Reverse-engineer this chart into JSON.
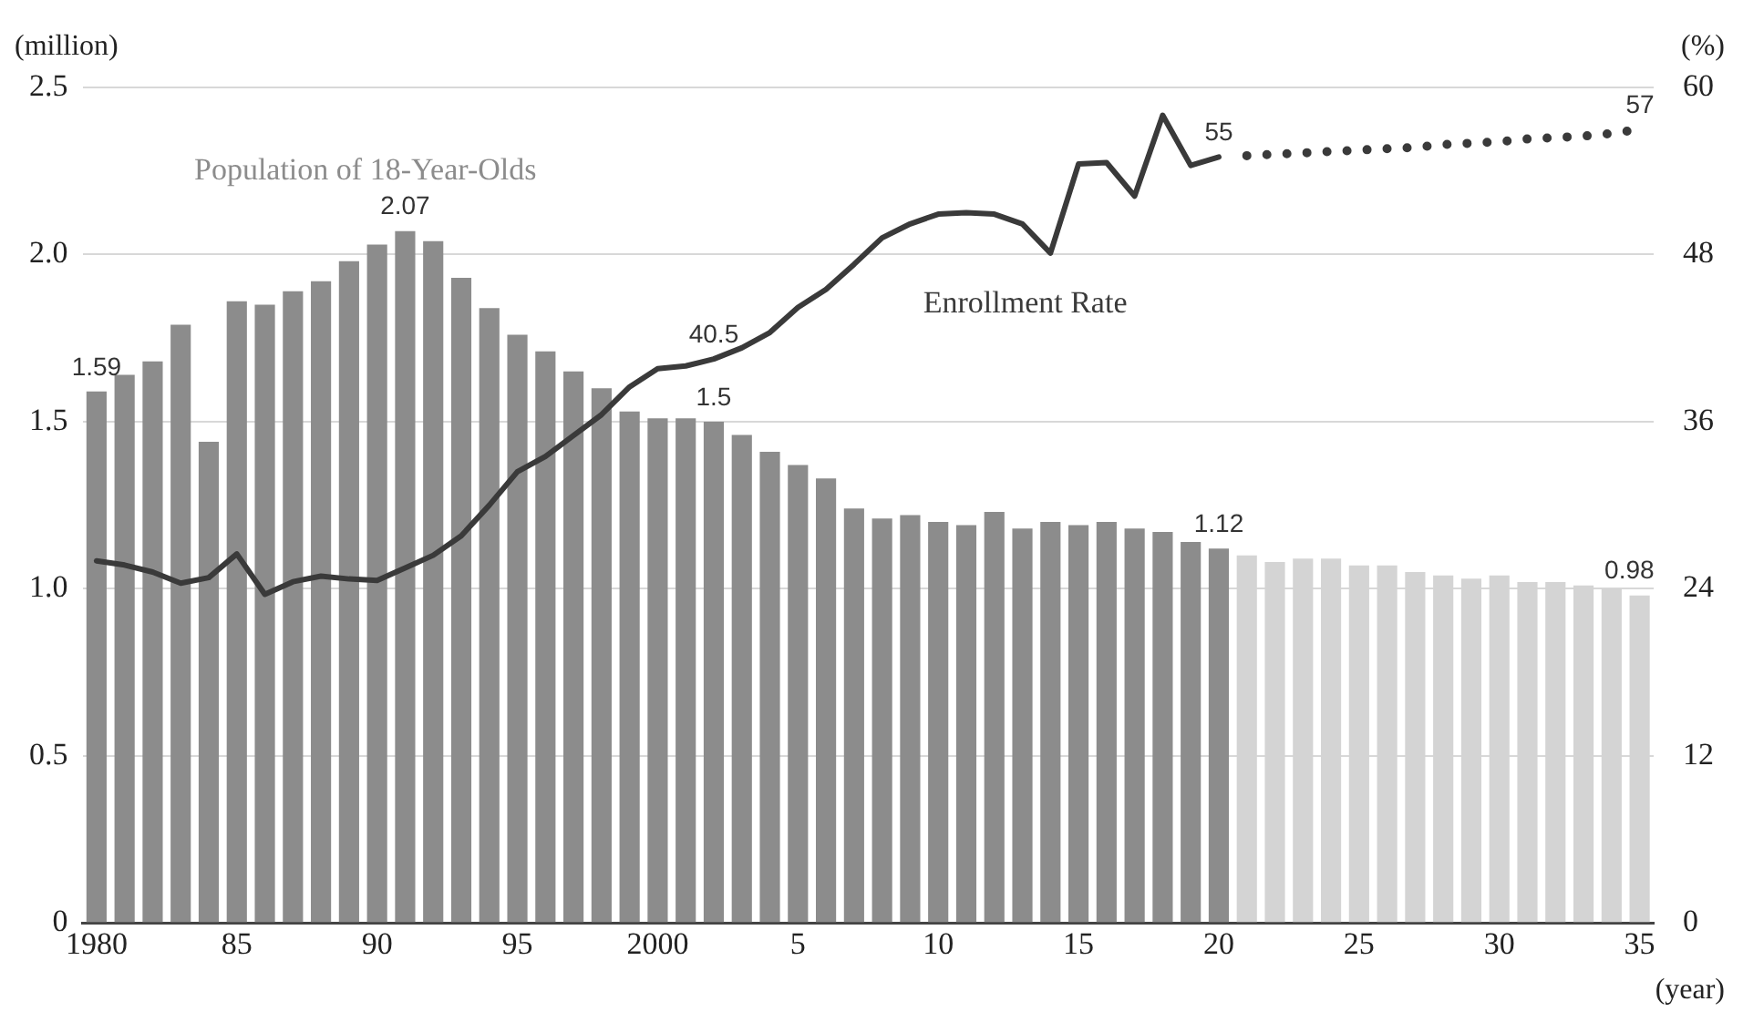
{
  "chart_data": {
    "type": "bar",
    "xlabel": "(year)",
    "ylabel": "(million)",
    "y2label": "(%)",
    "categories": [
      "1980",
      null,
      null,
      null,
      null,
      "85",
      null,
      null,
      null,
      null,
      "90",
      null,
      null,
      null,
      null,
      "95",
      null,
      null,
      null,
      null,
      "2000",
      null,
      null,
      null,
      null,
      "5",
      null,
      null,
      null,
      null,
      "10",
      null,
      null,
      null,
      null,
      "15",
      null,
      null,
      null,
      null,
      "20",
      null,
      null,
      null,
      null,
      "25",
      null,
      null,
      null,
      null,
      "30",
      null,
      null,
      null,
      null,
      "35"
    ],
    "series": [
      {
        "name": "Population of 18-Year-Olds",
        "color": "#8c8c8c",
        "values": [
          1.59,
          1.64,
          1.68,
          1.79,
          1.44,
          1.86,
          1.85,
          1.89,
          1.92,
          1.98,
          2.03,
          2.07,
          2.04,
          1.93,
          1.84,
          1.76,
          1.71,
          1.65,
          1.6,
          1.53,
          1.51,
          1.51,
          1.5,
          1.46,
          1.41,
          1.37,
          1.33,
          1.24,
          1.21,
          1.22,
          1.2,
          1.19,
          1.23,
          1.18,
          1.2,
          1.19,
          1.2,
          1.18,
          1.17,
          1.14,
          1.12,
          null,
          null,
          null,
          null,
          null,
          null,
          null,
          null,
          null,
          null,
          null,
          null,
          null,
          null,
          null
        ],
        "value_labels": [
          "1.59",
          null,
          null,
          null,
          null,
          null,
          null,
          null,
          null,
          null,
          null,
          "2.07",
          null,
          null,
          null,
          null,
          null,
          null,
          null,
          null,
          null,
          null,
          "1.5",
          null,
          null,
          null,
          null,
          null,
          null,
          null,
          null,
          null,
          null,
          null,
          null,
          null,
          null,
          null,
          null,
          null,
          "1.12",
          null,
          null,
          null,
          null,
          null,
          null,
          null,
          null,
          null,
          null,
          null,
          null,
          null,
          null,
          null
        ]
      },
      {
        "color": "#d4d4d4",
        "values": [
          null,
          null,
          null,
          null,
          null,
          null,
          null,
          null,
          null,
          null,
          null,
          null,
          null,
          null,
          null,
          null,
          null,
          null,
          null,
          null,
          null,
          null,
          null,
          null,
          null,
          null,
          null,
          null,
          null,
          null,
          null,
          null,
          null,
          null,
          null,
          null,
          null,
          null,
          null,
          null,
          null,
          1.1,
          1.08,
          1.09,
          1.09,
          1.07,
          1.07,
          1.05,
          1.04,
          1.03,
          1.04,
          1.02,
          1.02,
          1.01,
          1.0,
          0.98
        ],
        "value_labels": [
          null,
          null,
          null,
          null,
          null,
          null,
          null,
          null,
          null,
          null,
          null,
          null,
          null,
          null,
          null,
          null,
          null,
          null,
          null,
          null,
          null,
          null,
          null,
          null,
          null,
          null,
          null,
          null,
          null,
          null,
          null,
          null,
          null,
          null,
          null,
          null,
          null,
          null,
          null,
          null,
          null,
          null,
          null,
          null,
          null,
          null,
          null,
          null,
          null,
          null,
          null,
          null,
          null,
          null,
          null,
          "0.98"
        ]
      },
      {
        "name": "Enrollment Rate",
        "type": "line",
        "axis": "y2",
        "color": "#3a3a3a",
        "line_style": "solid",
        "values": [
          26.0,
          25.7,
          25.2,
          24.4,
          24.8,
          26.5,
          23.6,
          24.5,
          24.9,
          24.7,
          24.6,
          25.5,
          26.4,
          27.8,
          30.0,
          32.4,
          33.5,
          35.0,
          36.5,
          38.5,
          39.8,
          40.0,
          40.5,
          41.3,
          42.4,
          44.2,
          45.5,
          47.3,
          49.2,
          50.2,
          50.9,
          51.0,
          50.9,
          50.2,
          48.1,
          54.5,
          54.6,
          52.2,
          58.0,
          54.4,
          55,
          null,
          null,
          null,
          null,
          null,
          null,
          null,
          null,
          null,
          null,
          null,
          null,
          null,
          null,
          null
        ],
        "value_labels": [
          null,
          null,
          null,
          null,
          null,
          null,
          null,
          null,
          null,
          null,
          null,
          null,
          null,
          null,
          null,
          null,
          null,
          null,
          null,
          null,
          null,
          null,
          "40.5",
          null,
          null,
          null,
          null,
          null,
          null,
          null,
          null,
          null,
          null,
          null,
          null,
          null,
          null,
          null,
          null,
          null,
          "55",
          null,
          null,
          null,
          null,
          null,
          null,
          null,
          null,
          null,
          null,
          null,
          null,
          null,
          null,
          null
        ]
      },
      {
        "type": "line",
        "axis": "y2",
        "color": "#3a3a3a",
        "line_style": "dotted",
        "values": [
          null,
          null,
          null,
          null,
          null,
          null,
          null,
          null,
          null,
          null,
          null,
          null,
          null,
          null,
          null,
          null,
          null,
          null,
          null,
          null,
          null,
          null,
          null,
          null,
          null,
          null,
          null,
          null,
          null,
          null,
          null,
          null,
          null,
          null,
          null,
          null,
          null,
          null,
          null,
          null,
          null,
          55.1,
          55.2,
          55.3,
          55.4,
          55.5,
          55.6,
          55.7,
          55.9,
          56.0,
          56.1,
          56.3,
          56.4,
          56.5,
          56.7,
          57
        ],
        "value_labels": [
          null,
          null,
          null,
          null,
          null,
          null,
          null,
          null,
          null,
          null,
          null,
          null,
          null,
          null,
          null,
          null,
          null,
          null,
          null,
          null,
          null,
          null,
          null,
          null,
          null,
          null,
          null,
          null,
          null,
          null,
          null,
          null,
          null,
          null,
          null,
          null,
          null,
          null,
          null,
          null,
          null,
          null,
          null,
          null,
          null,
          null,
          null,
          null,
          null,
          null,
          null,
          null,
          null,
          null,
          null,
          "57"
        ]
      }
    ],
    "ylim": [
      0,
      2.5
    ],
    "yticks": [
      0,
      0.5,
      {
        "value": 1,
        "label": "1.0"
      },
      1.5,
      {
        "value": 2,
        "label": "2.0"
      },
      2.5
    ],
    "y2lim": [
      0,
      60
    ],
    "y2ticks": [
      0,
      12,
      24,
      36,
      48,
      60
    ],
    "grid": "y",
    "legend": false,
    "marker": "none"
  }
}
